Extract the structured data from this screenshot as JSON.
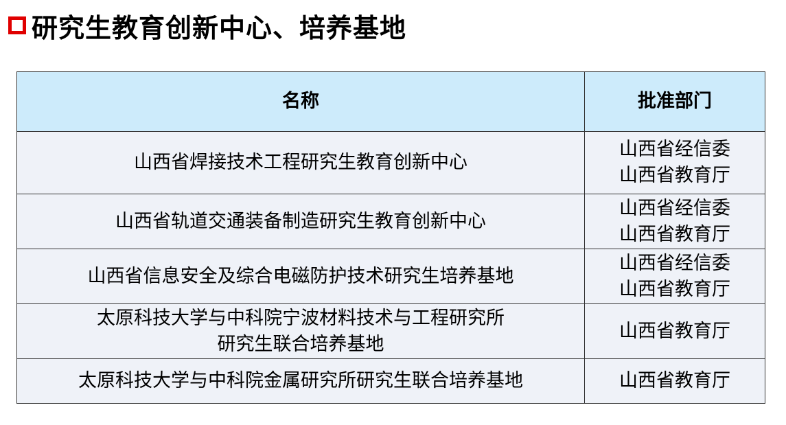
{
  "title": "研究生教育创新中心、培养基地",
  "colors": {
    "bullet": "#e00000",
    "header_bg": "#cdebfb",
    "row_bg": "#eff2f8"
  },
  "table": {
    "headers": [
      "名称",
      "批准部门"
    ],
    "rows": [
      {
        "name": [
          "山西省焊接技术工程研究生教育创新中心"
        ],
        "dept": [
          "山西省经信委",
          "山西省教育厅"
        ]
      },
      {
        "name": [
          "山西省轨道交通装备制造研究生教育创新中心"
        ],
        "dept": [
          "山西省经信委",
          "山西省教育厅"
        ]
      },
      {
        "name": [
          "山西省信息安全及综合电磁防护技术研究生培养基地"
        ],
        "dept": [
          "山西省经信委",
          "山西省教育厅"
        ]
      },
      {
        "name": [
          "太原科技大学与中科院宁波材料技术与工程研究所",
          "研究生联合培养基地"
        ],
        "dept": [
          "山西省教育厅"
        ]
      },
      {
        "name": [
          "太原科技大学与中科院金属研究所研究生联合培养基地"
        ],
        "dept": [
          "山西省教育厅"
        ]
      }
    ]
  }
}
